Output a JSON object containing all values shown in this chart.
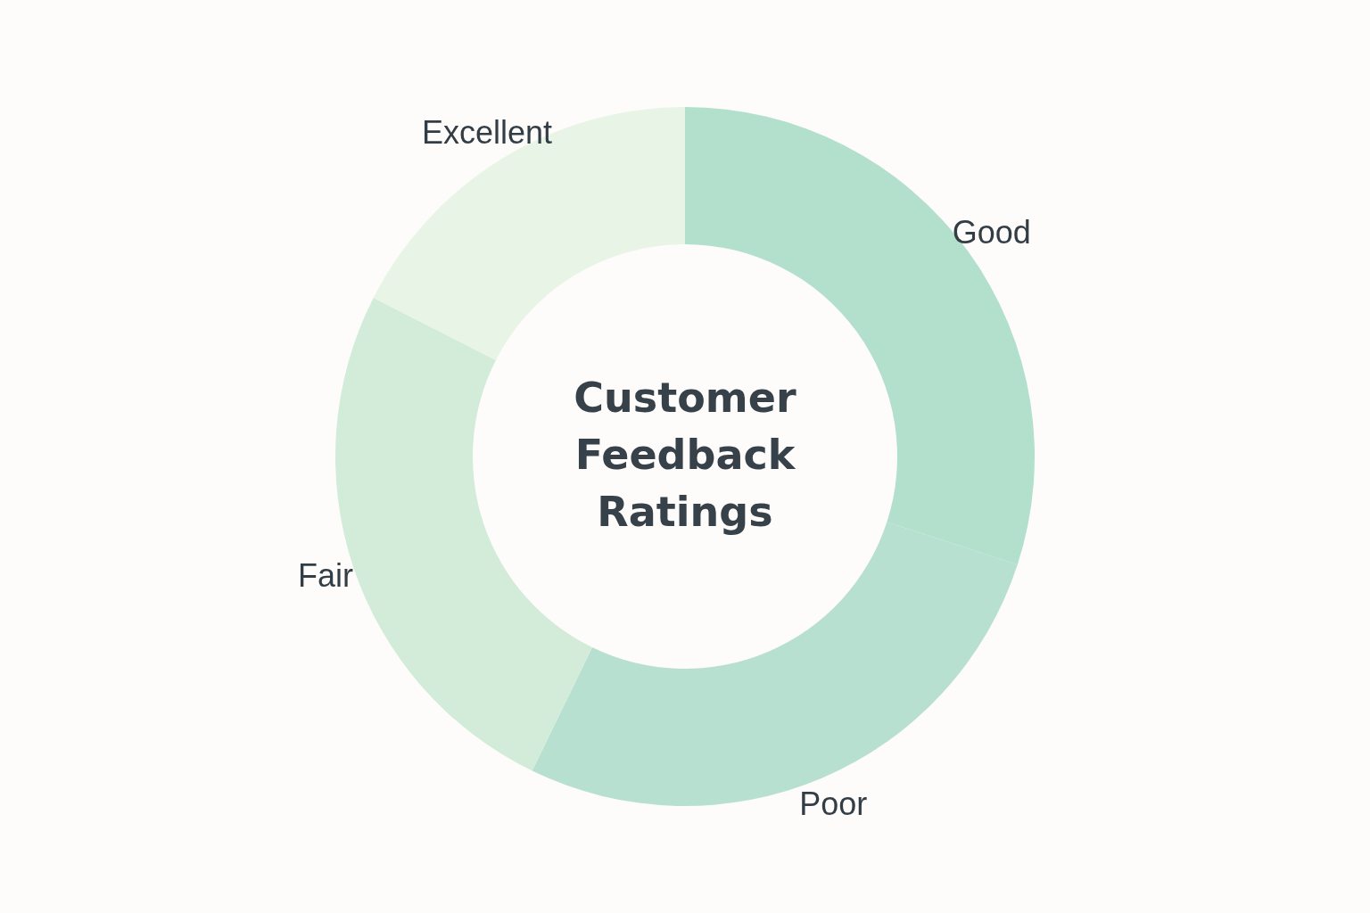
{
  "chart_data": {
    "type": "donut",
    "title": "Customer Feedback Ratings",
    "categories": [
      "Good",
      "Poor",
      "Fair",
      "Excellent"
    ],
    "values": [
      30.0,
      27.2,
      25.3,
      17.5
    ],
    "colors": [
      "#b3dfcd",
      "#b8e0d0",
      "#d3ecd9",
      "#e8f5e6"
    ],
    "legend": false
  }
}
